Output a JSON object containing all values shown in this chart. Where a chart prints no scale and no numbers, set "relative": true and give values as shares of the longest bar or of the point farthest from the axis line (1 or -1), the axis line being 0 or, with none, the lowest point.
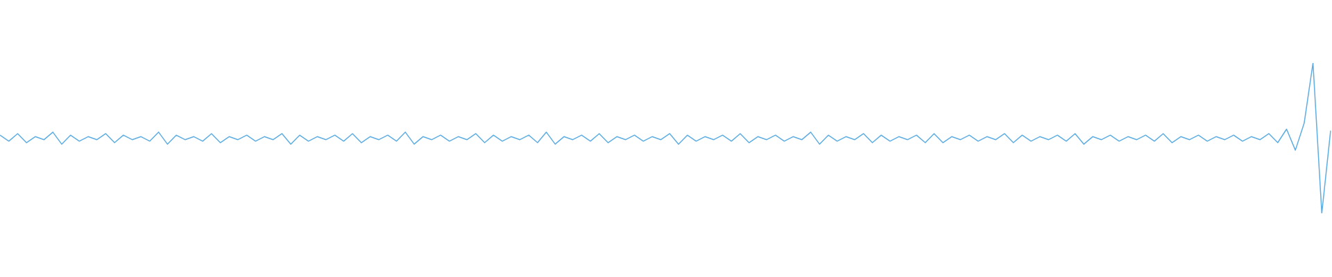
{
  "chart_data": {
    "type": "line",
    "relative": true,
    "legend": false,
    "tick_labels": false,
    "marker": "none",
    "line_style": "solid",
    "categories": [
      null,
      null,
      null,
      null,
      null,
      null,
      null,
      null,
      null,
      null,
      null,
      null,
      null,
      null,
      null,
      null,
      null,
      null,
      null,
      null,
      null,
      null,
      null,
      null,
      null,
      null,
      null,
      null,
      null,
      null,
      null,
      null,
      null,
      null,
      null,
      null,
      null,
      null,
      null,
      null,
      null,
      null,
      null,
      null,
      null,
      null,
      null,
      null,
      null,
      null,
      null,
      null,
      null,
      null,
      null,
      null,
      null,
      null,
      null,
      null,
      null,
      null,
      null,
      null,
      null,
      null,
      null,
      null,
      null,
      null,
      null,
      null,
      null,
      null,
      null,
      null,
      null,
      null,
      null,
      null,
      null,
      null,
      null,
      null,
      null,
      null,
      null,
      null,
      null,
      null,
      null,
      null,
      null,
      null,
      null,
      null,
      null,
      null,
      null,
      null,
      null,
      null,
      null,
      null,
      null,
      null,
      null,
      null,
      null,
      null,
      null,
      null,
      null,
      null,
      null,
      null,
      null,
      null,
      null,
      null,
      null,
      null,
      null,
      null,
      null,
      null,
      null,
      null,
      null,
      null,
      null,
      null,
      null,
      null,
      null,
      null,
      null,
      null,
      null,
      null,
      null,
      null,
      null,
      null,
      null,
      null,
      null,
      null,
      null,
      null,
      null,
      null
    ],
    "series": [
      {
        "color": "#5dade2",
        "values": [
          0.52,
          0.48,
          0.53,
          0.47,
          0.51,
          0.49,
          0.54,
          0.46,
          0.52,
          0.48,
          0.51,
          0.49,
          0.53,
          0.47,
          0.52,
          0.49,
          0.51,
          0.48,
          0.54,
          0.46,
          0.52,
          0.49,
          0.51,
          0.48,
          0.53,
          0.47,
          0.51,
          0.49,
          0.52,
          0.48,
          0.51,
          0.49,
          0.53,
          0.46,
          0.52,
          0.48,
          0.51,
          0.49,
          0.52,
          0.48,
          0.53,
          0.47,
          0.51,
          0.49,
          0.52,
          0.48,
          0.54,
          0.46,
          0.51,
          0.49,
          0.52,
          0.48,
          0.51,
          0.49,
          0.53,
          0.47,
          0.52,
          0.48,
          0.51,
          0.49,
          0.52,
          0.47,
          0.54,
          0.46,
          0.51,
          0.49,
          0.52,
          0.48,
          0.53,
          0.47,
          0.51,
          0.49,
          0.52,
          0.48,
          0.51,
          0.49,
          0.53,
          0.46,
          0.52,
          0.48,
          0.51,
          0.49,
          0.52,
          0.48,
          0.53,
          0.47,
          0.51,
          0.49,
          0.52,
          0.48,
          0.51,
          0.49,
          0.54,
          0.46,
          0.52,
          0.48,
          0.51,
          0.49,
          0.53,
          0.47,
          0.52,
          0.48,
          0.51,
          0.49,
          0.52,
          0.47,
          0.53,
          0.47,
          0.51,
          0.49,
          0.52,
          0.48,
          0.51,
          0.49,
          0.53,
          0.47,
          0.52,
          0.48,
          0.51,
          0.49,
          0.52,
          0.48,
          0.53,
          0.46,
          0.51,
          0.49,
          0.52,
          0.48,
          0.51,
          0.49,
          0.52,
          0.48,
          0.53,
          0.47,
          0.51,
          0.49,
          0.52,
          0.48,
          0.51,
          0.49,
          0.52,
          0.48,
          0.51,
          0.49,
          0.53,
          0.47,
          0.56,
          0.42,
          0.6,
          1,
          0,
          0.55
        ]
      }
    ]
  }
}
